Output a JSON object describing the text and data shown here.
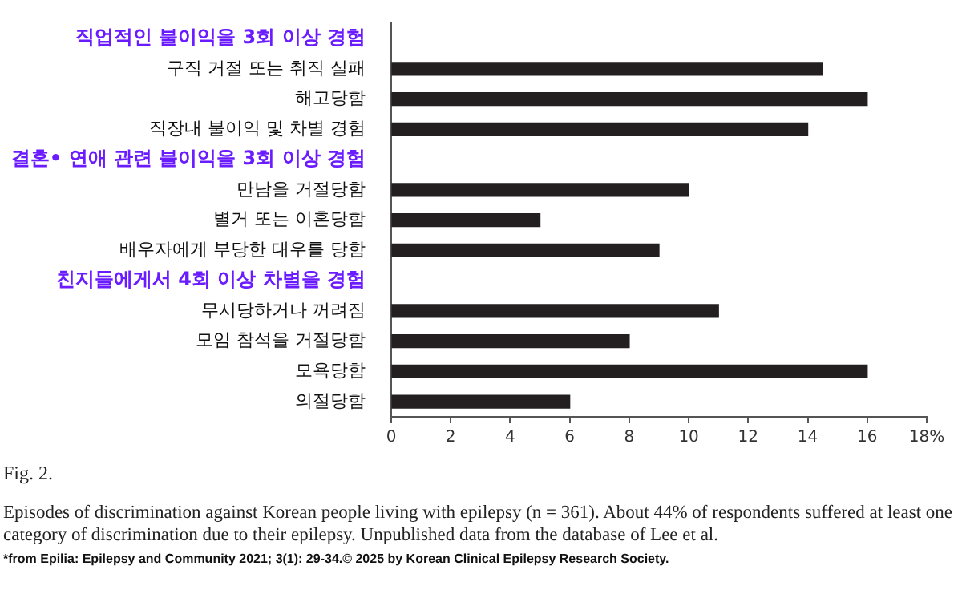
{
  "chart_data": {
    "type": "bar",
    "orientation": "horizontal",
    "categories": [
      "직업적인 불이익을 3회 이상 경험",
      "구직 거절 또는 취직 실패",
      "해고당함",
      "직장내 불이익 및 차별 경험",
      "결혼• 연애 관련 불이익을 3회 이상 경험",
      "만남을 거절당함",
      "별거 또는 이혼당함",
      "배우자에게 부당한 대우를 당함",
      "친지들에게서 4회 이상 차별을 경험",
      "무시당하거나 꺼려짐",
      "모임 참석을 거절당함",
      "모욕당함",
      "의절당함"
    ],
    "values": [
      null,
      14.5,
      16,
      14,
      null,
      10,
      5,
      9,
      null,
      11,
      8,
      16,
      6
    ],
    "color": "#231f20",
    "xlim": [
      0,
      18
    ],
    "xticks": [
      0,
      2,
      4,
      6,
      8,
      10,
      12,
      14,
      16,
      {
        "value": 18,
        "label": "18%"
      }
    ],
    "grid": false,
    "legend": false,
    "annotations": [
      "Fig. 2.",
      "Episodes of discrimination against Korean people living with epilepsy (n = 361). About 44% of respondents suffered at least one category of discrimination due to their epilepsy. Unpublished data from the database of Lee et al.",
      "*from Epilia: Epilepsy and Community 2021; 3(1): 29-34.© 2025 by Korean Clinical Epilepsy Research Society."
    ]
  }
}
